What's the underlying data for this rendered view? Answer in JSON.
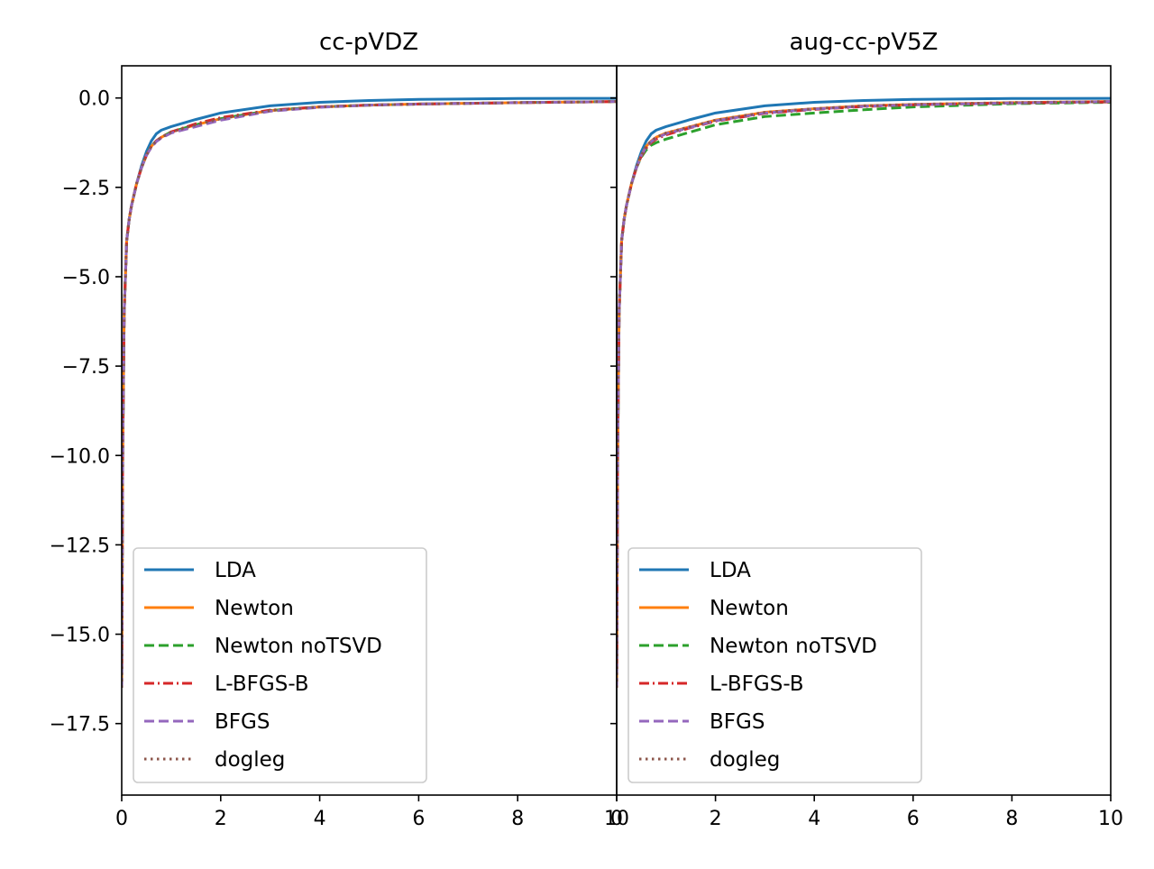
{
  "chart_data": [
    {
      "type": "line",
      "title": "cc-pVDZ",
      "xlim": [
        0,
        10
      ],
      "ylim": [
        -19.5,
        0.9
      ],
      "xticks": [
        "0",
        "2",
        "4",
        "6",
        "8",
        "10"
      ],
      "yticks": [
        "0.0",
        "−2.5",
        "−5.0",
        "−7.5",
        "−10.0",
        "−12.5",
        "−15.0",
        "−17.5"
      ],
      "ytick_values": [
        0,
        -2.5,
        -5,
        -7.5,
        -10,
        -12.5,
        -15,
        -17.5
      ],
      "xtick_values": [
        0,
        2,
        4,
        6,
        8,
        10
      ],
      "grid": false,
      "legend": "lower-left",
      "series": [
        {
          "name": "LDA",
          "color": "#1f77b4",
          "style": "solid",
          "x": [
            0.0,
            0.02,
            0.05,
            0.1,
            0.15,
            0.2,
            0.3,
            0.4,
            0.5,
            0.6,
            0.7,
            0.8,
            1.0,
            1.5,
            2.0,
            3.0,
            4.0,
            5.0,
            6.0,
            8.0,
            10.0
          ],
          "y": [
            -16.5,
            -10.0,
            -6.0,
            -4.0,
            -3.4,
            -3.0,
            -2.4,
            -1.9,
            -1.5,
            -1.2,
            -1.0,
            -0.9,
            -0.8,
            -0.6,
            -0.42,
            -0.22,
            -0.12,
            -0.07,
            -0.04,
            -0.015,
            -0.01
          ]
        },
        {
          "name": "Newton",
          "color": "#ff7f0e",
          "style": "solid",
          "x": [
            0.0,
            0.02,
            0.05,
            0.1,
            0.15,
            0.2,
            0.3,
            0.4,
            0.5,
            0.6,
            0.7,
            0.8,
            1.0,
            1.5,
            2.0,
            3.0,
            4.0,
            5.0,
            6.0,
            8.0,
            10.0
          ],
          "y": [
            -16.5,
            -10.0,
            -6.0,
            -4.0,
            -3.4,
            -3.0,
            -2.4,
            -1.95,
            -1.6,
            -1.35,
            -1.2,
            -1.1,
            -0.95,
            -0.75,
            -0.58,
            -0.35,
            -0.25,
            -0.2,
            -0.17,
            -0.13,
            -0.1
          ]
        },
        {
          "name": "Newton noTSVD",
          "color": "#2ca02c",
          "style": "dashed",
          "x": [
            0.0,
            0.02,
            0.05,
            0.1,
            0.15,
            0.2,
            0.3,
            0.4,
            0.5,
            0.6,
            0.7,
            0.8,
            1.0,
            1.5,
            2.0,
            3.0,
            4.0,
            5.0,
            6.0,
            8.0,
            10.0
          ],
          "y": [
            -16.5,
            -10.0,
            -6.0,
            -4.0,
            -3.4,
            -3.0,
            -2.4,
            -1.95,
            -1.6,
            -1.35,
            -1.2,
            -1.1,
            -0.95,
            -0.75,
            -0.58,
            -0.35,
            -0.25,
            -0.2,
            -0.17,
            -0.13,
            -0.1
          ]
        },
        {
          "name": "L-BFGS-B",
          "color": "#d62728",
          "style": "dashdot",
          "x": [
            0.0,
            0.02,
            0.05,
            0.1,
            0.15,
            0.2,
            0.3,
            0.4,
            0.5,
            0.6,
            0.7,
            0.8,
            1.0,
            1.5,
            2.0,
            3.0,
            4.0,
            5.0,
            6.0,
            8.0,
            10.0
          ],
          "y": [
            -16.5,
            -10.0,
            -6.0,
            -4.0,
            -3.4,
            -3.0,
            -2.4,
            -1.95,
            -1.6,
            -1.35,
            -1.2,
            -1.1,
            -0.95,
            -0.72,
            -0.55,
            -0.34,
            -0.25,
            -0.2,
            -0.17,
            -0.13,
            -0.1
          ]
        },
        {
          "name": "BFGS",
          "color": "#9467bd",
          "style": "dashed",
          "x": [
            0.0,
            0.02,
            0.05,
            0.1,
            0.15,
            0.2,
            0.3,
            0.4,
            0.5,
            0.6,
            0.7,
            0.8,
            1.0,
            1.5,
            2.0,
            3.0,
            4.0,
            5.0,
            6.0,
            8.0,
            10.0
          ],
          "y": [
            -16.5,
            -10.0,
            -6.0,
            -4.0,
            -3.4,
            -3.0,
            -2.4,
            -1.95,
            -1.6,
            -1.38,
            -1.22,
            -1.12,
            -0.98,
            -0.8,
            -0.62,
            -0.37,
            -0.26,
            -0.2,
            -0.17,
            -0.13,
            -0.1
          ]
        },
        {
          "name": "dogleg",
          "color": "#8c564b",
          "style": "dotted",
          "x": [
            0.0,
            0.02,
            0.05,
            0.1,
            0.15,
            0.2,
            0.3,
            0.4,
            0.5,
            0.6,
            0.7,
            0.8,
            1.0,
            1.5,
            2.0,
            3.0,
            4.0,
            5.0,
            6.0,
            8.0,
            10.0
          ],
          "y": [
            -16.5,
            -10.0,
            -6.0,
            -4.0,
            -3.4,
            -3.0,
            -2.4,
            -1.95,
            -1.6,
            -1.35,
            -1.2,
            -1.1,
            -0.95,
            -0.75,
            -0.58,
            -0.35,
            -0.25,
            -0.2,
            -0.17,
            -0.13,
            -0.1
          ]
        }
      ]
    },
    {
      "type": "line",
      "title": "aug-cc-pV5Z",
      "xlim": [
        0,
        10
      ],
      "ylim": [
        -19.5,
        0.9
      ],
      "xticks": [
        "0",
        "2",
        "4",
        "6",
        "8",
        "10"
      ],
      "xtick_values": [
        0,
        2,
        4,
        6,
        8,
        10
      ],
      "ytick_values": [
        0,
        -2.5,
        -5,
        -7.5,
        -10,
        -12.5,
        -15,
        -17.5
      ],
      "grid": false,
      "legend": "lower-left",
      "series": [
        {
          "name": "LDA",
          "color": "#1f77b4",
          "style": "solid",
          "x": [
            0.0,
            0.02,
            0.05,
            0.1,
            0.15,
            0.2,
            0.3,
            0.4,
            0.5,
            0.6,
            0.7,
            0.8,
            1.0,
            1.5,
            2.0,
            3.0,
            4.0,
            5.0,
            6.0,
            8.0,
            10.0
          ],
          "y": [
            -16.5,
            -10.0,
            -6.0,
            -4.0,
            -3.4,
            -3.0,
            -2.4,
            -1.9,
            -1.5,
            -1.2,
            -1.0,
            -0.9,
            -0.8,
            -0.6,
            -0.42,
            -0.22,
            -0.12,
            -0.07,
            -0.04,
            -0.015,
            -0.01
          ]
        },
        {
          "name": "Newton",
          "color": "#ff7f0e",
          "style": "solid",
          "x": [
            0.0,
            0.02,
            0.05,
            0.1,
            0.15,
            0.2,
            0.3,
            0.4,
            0.5,
            0.6,
            0.7,
            0.8,
            1.0,
            1.5,
            2.0,
            3.0,
            4.0,
            5.0,
            6.0,
            8.0,
            10.0
          ],
          "y": [
            -16.5,
            -10.0,
            -6.0,
            -4.0,
            -3.4,
            -3.0,
            -2.4,
            -1.95,
            -1.6,
            -1.35,
            -1.2,
            -1.1,
            -0.98,
            -0.8,
            -0.62,
            -0.4,
            -0.3,
            -0.22,
            -0.18,
            -0.13,
            -0.1
          ]
        },
        {
          "name": "Newton noTSVD",
          "color": "#2ca02c",
          "style": "dashed",
          "x": [
            0.0,
            0.02,
            0.05,
            0.1,
            0.15,
            0.2,
            0.3,
            0.4,
            0.5,
            0.6,
            0.7,
            0.8,
            1.0,
            1.5,
            2.0,
            3.0,
            4.0,
            5.0,
            6.0,
            8.0,
            10.0
          ],
          "y": [
            -16.5,
            -10.0,
            -6.0,
            -4.0,
            -3.4,
            -3.0,
            -2.4,
            -1.95,
            -1.65,
            -1.45,
            -1.32,
            -1.25,
            -1.15,
            -0.95,
            -0.75,
            -0.52,
            -0.42,
            -0.33,
            -0.25,
            -0.16,
            -0.12
          ]
        },
        {
          "name": "L-BFGS-B",
          "color": "#d62728",
          "style": "dashdot",
          "x": [
            0.0,
            0.02,
            0.05,
            0.1,
            0.15,
            0.2,
            0.3,
            0.4,
            0.5,
            0.6,
            0.7,
            0.8,
            1.0,
            1.5,
            2.0,
            3.0,
            4.0,
            5.0,
            6.0,
            8.0,
            10.0
          ],
          "y": [
            -16.5,
            -10.0,
            -6.0,
            -4.0,
            -3.4,
            -3.0,
            -2.4,
            -1.95,
            -1.62,
            -1.4,
            -1.25,
            -1.15,
            -1.03,
            -0.83,
            -0.65,
            -0.43,
            -0.32,
            -0.24,
            -0.19,
            -0.14,
            -0.11
          ]
        },
        {
          "name": "BFGS",
          "color": "#9467bd",
          "style": "dashed",
          "x": [
            0.0,
            0.02,
            0.05,
            0.1,
            0.15,
            0.2,
            0.3,
            0.4,
            0.5,
            0.6,
            0.7,
            0.8,
            1.0,
            1.5,
            2.0,
            3.0,
            4.0,
            5.0,
            6.0,
            8.0,
            10.0
          ],
          "y": [
            -16.5,
            -10.0,
            -6.0,
            -4.0,
            -3.4,
            -3.0,
            -2.4,
            -1.95,
            -1.6,
            -1.37,
            -1.22,
            -1.12,
            -1.0,
            -0.82,
            -0.64,
            -0.42,
            -0.31,
            -0.23,
            -0.19,
            -0.14,
            -0.1
          ]
        },
        {
          "name": "dogleg",
          "color": "#8c564b",
          "style": "dotted",
          "x": [
            0.0,
            0.02,
            0.05,
            0.1,
            0.15,
            0.2,
            0.3,
            0.4,
            0.5,
            0.6,
            0.7,
            0.8,
            1.0,
            1.5,
            2.0,
            3.0,
            4.0,
            5.0,
            6.0,
            8.0,
            10.0
          ],
          "y": [
            -16.5,
            -10.0,
            -6.0,
            -4.0,
            -3.4,
            -3.0,
            -2.4,
            -1.95,
            -1.6,
            -1.35,
            -1.2,
            -1.1,
            -0.98,
            -0.8,
            -0.62,
            -0.4,
            -0.3,
            -0.22,
            -0.18,
            -0.13,
            -0.1
          ]
        }
      ]
    }
  ]
}
